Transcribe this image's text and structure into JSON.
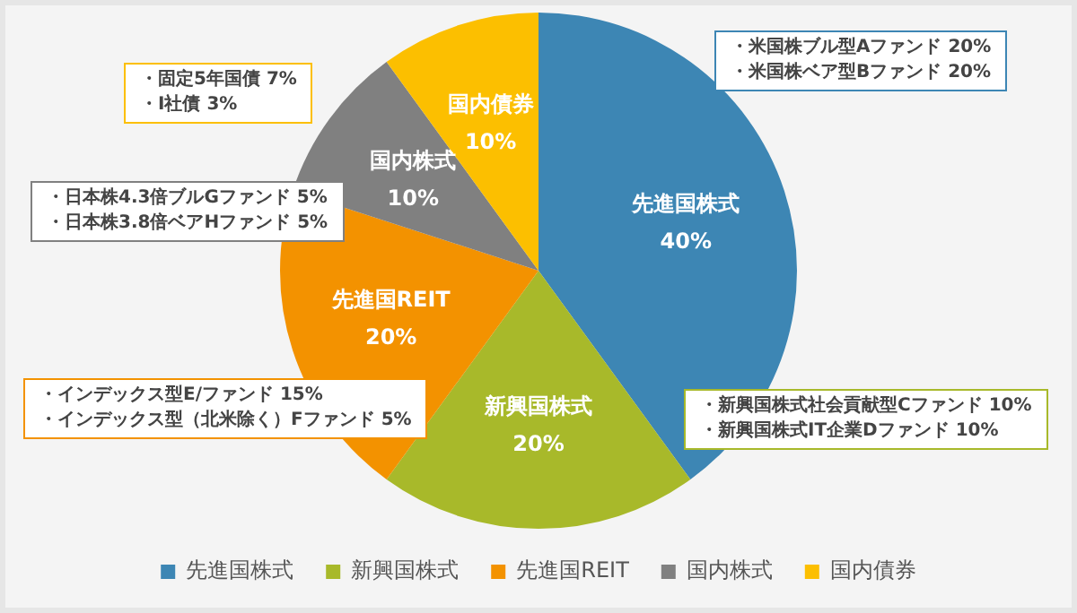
{
  "chart_data": {
    "type": "pie",
    "categories": [
      "先進国株式",
      "新興国株式",
      "先進国REIT",
      "国内株式",
      "国内債券"
    ],
    "values": [
      40,
      20,
      20,
      10,
      10
    ],
    "colors": [
      "#3d86b4",
      "#a8b92a",
      "#f39200",
      "#808080",
      "#fcbf00"
    ],
    "value_labels": [
      "40%",
      "20%",
      "20%",
      "10%",
      "10%"
    ],
    "legend": "bottom",
    "annotations": [
      "・米国株ブル型Aファンド 20%\n・米国株ベア型Bファンド 20%",
      "・新興国株式社会貢献型Cファンド 10%\n・新興国株式IT企業Dファンド 10%",
      "・インデックス型E/ファンド 15%\n・インデックス型（北米除く）Fファンド 5%",
      "・日本株4.3倍ブルGファンド 5%\n・日本株3.8倍ベアHファンド 5%",
      "・固定5年国債 7%\n・I社債 3%"
    ]
  }
}
